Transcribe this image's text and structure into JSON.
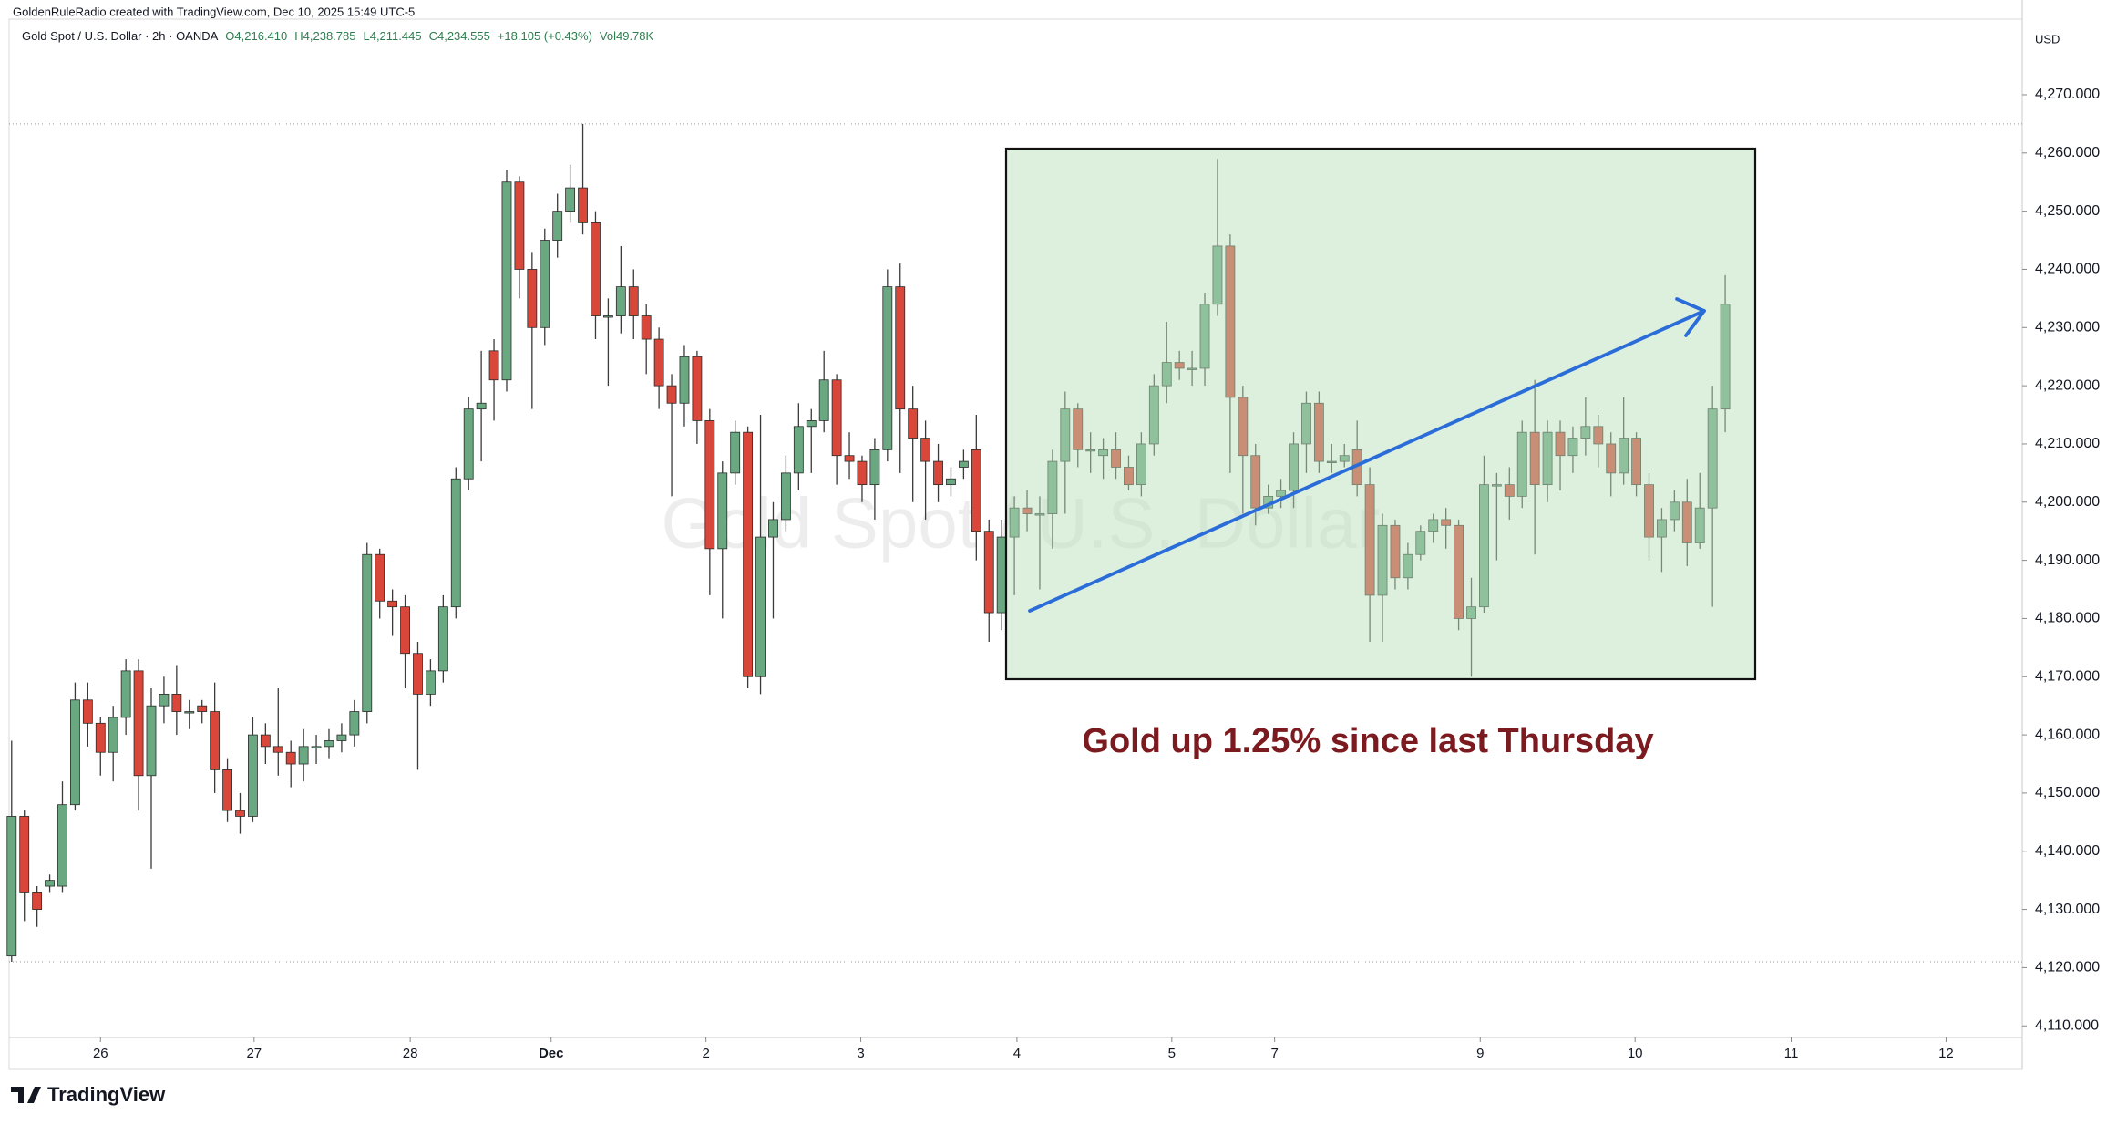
{
  "header": "GoldenRuleRadio created with TradingView.com, Dec 10, 2025 15:49 UTC-5",
  "brand": "TradingView",
  "chart_data": {
    "type": "candlestick",
    "symbol": "Gold Spot / U.S. Dollar · 2h · OANDA",
    "quote": [
      "O4,216.410",
      "H4,238.785",
      "L4,211.445",
      "C4,234.555",
      "+18.105 (+0.43%)"
    ],
    "volume": "Vol49.78K",
    "watermark": "Gold Spot / U.S. Dollar",
    "currency": "USD",
    "annotation": "Gold up 1.25% since last Thursday",
    "up_color": "#6aa882",
    "down_color": "#d9463a",
    "open": [
      4122,
      4146,
      4133,
      4134,
      4134,
      4148,
      4166,
      4162,
      4157,
      4163,
      4171,
      4153,
      4165,
      4167,
      4164,
      4165,
      4164,
      4154,
      4147,
      4146,
      4160,
      4158,
      4157,
      4155,
      4158,
      4158,
      4159,
      4160,
      4164,
      4191,
      4183,
      4182,
      4174,
      4167,
      4171,
      4182,
      4204,
      4216,
      4226,
      4221,
      4255,
      4240,
      4230,
      4245,
      4250,
      4254,
      4248,
      4232,
      4232,
      4237,
      4232,
      4228,
      4220,
      4217,
      4225,
      4214,
      4192,
      4205,
      4212,
      4170,
      4194,
      4197,
      4205,
      4213,
      4214,
      4221,
      4208,
      4207,
      4203,
      4209,
      4237,
      4216,
      4211,
      4207,
      4203,
      4206,
      4209,
      4195,
      4181,
      4194,
      4199,
      4198,
      4198,
      4207,
      4216,
      4209,
      4208,
      4209,
      4206,
      4203,
      4210,
      4220,
      4224,
      4223,
      4223,
      4234,
      4244,
      4218,
      4208,
      4199,
      4201,
      4202,
      4210,
      4217,
      4207,
      4207,
      4209,
      4203,
      4184,
      4196,
      4187,
      4191,
      4195,
      4197,
      4196,
      4180,
      4182,
      4203,
      4203,
      4201,
      4212,
      4203,
      4212,
      4208,
      4211,
      4213,
      4210,
      4205,
      4211,
      4203,
      4194,
      4197,
      4200,
      4193,
      4199,
      4216
    ],
    "high": [
      4159,
      4147,
      4134,
      4136,
      4152,
      4169,
      4169,
      4163,
      4165,
      4173,
      4173,
      4168,
      4170,
      4172,
      4166,
      4166,
      4169,
      4156,
      4150,
      4163,
      4162,
      4168,
      4159,
      4161,
      4160,
      4161,
      4162,
      4166,
      4193,
      4192,
      4185,
      4184,
      4176,
      4173,
      4184,
      4206,
      4218,
      4226,
      4228,
      4257,
      4256,
      4243,
      4247,
      4253,
      4258,
      4265,
      4250,
      4235,
      4244,
      4240,
      4234,
      4230,
      4222,
      4227,
      4226,
      4216,
      4207,
      4214,
      4213,
      4215,
      4200,
      4208,
      4217,
      4216,
      4226,
      4222,
      4212,
      4208,
      4211,
      4240,
      4241,
      4220,
      4214,
      4210,
      4206,
      4209,
      4215,
      4197,
      4197,
      4201,
      4202,
      4201,
      4209,
      4219,
      4217,
      4212,
      4211,
      4212,
      4208,
      4212,
      4222,
      4231,
      4226,
      4226,
      4236,
      4259,
      4246,
      4220,
      4210,
      4203,
      4204,
      4212,
      4219,
      4219,
      4210,
      4210,
      4214,
      4206,
      4198,
      4197,
      4193,
      4196,
      4198,
      4199,
      4197,
      4187,
      4208,
      4205,
      4206,
      4214,
      4221,
      4214,
      4214,
      4213,
      4218,
      4215,
      4212,
      4218,
      4212,
      4205,
      4199,
      4202,
      4204,
      4205,
      4220,
      4239
    ],
    "low": [
      4121,
      4128,
      4127,
      4133,
      4133,
      4147,
      4158,
      4153,
      4152,
      4160,
      4147,
      4137,
      4162,
      4160,
      4161,
      4162,
      4150,
      4145,
      4143,
      4145,
      4155,
      4153,
      4151,
      4152,
      4155,
      4156,
      4157,
      4158,
      4162,
      4180,
      4177,
      4168,
      4154,
      4165,
      4169,
      4180,
      4202,
      4207,
      4214,
      4219,
      4235,
      4216,
      4227,
      4242,
      4248,
      4246,
      4228,
      4220,
      4229,
      4228,
      4222,
      4216,
      4201,
      4213,
      4210,
      4184,
      4180,
      4203,
      4168,
      4167,
      4180,
      4195,
      4202,
      4205,
      4212,
      4203,
      4204,
      4200,
      4197,
      4207,
      4205,
      4200,
      4197,
      4200,
      4201,
      4204,
      4190,
      4176,
      4178,
      4184,
      4195,
      4185,
      4192,
      4198,
      4206,
      4205,
      4204,
      4204,
      4202,
      4201,
      4208,
      4217,
      4221,
      4220,
      4220,
      4232,
      4205,
      4198,
      4196,
      4198,
      4199,
      4199,
      4205,
      4205,
      4205,
      4206,
      4201,
      4176,
      4176,
      4185,
      4185,
      4190,
      4193,
      4192,
      4178,
      4170,
      4181,
      4190,
      4197,
      4199,
      4191,
      4200,
      4202,
      4205,
      4208,
      4206,
      4201,
      4203,
      4201,
      4190,
      4188,
      4195,
      4189,
      4192,
      4182,
      4212
    ],
    "close": [
      4146,
      4133,
      4130,
      4135,
      4148,
      4166,
      4162,
      4157,
      4163,
      4171,
      4153,
      4165,
      4167,
      4164,
      4164,
      4164,
      4154,
      4147,
      4146,
      4160,
      4158,
      4157,
      4155,
      4158,
      4158,
      4159,
      4160,
      4164,
      4191,
      4183,
      4182,
      4174,
      4167,
      4171,
      4182,
      4204,
      4216,
      4217,
      4221,
      4255,
      4240,
      4230,
      4245,
      4250,
      4254,
      4248,
      4232,
      4232,
      4237,
      4232,
      4228,
      4220,
      4217,
      4225,
      4214,
      4192,
      4205,
      4212,
      4170,
      4194,
      4197,
      4205,
      4213,
      4214,
      4221,
      4208,
      4207,
      4203,
      4209,
      4237,
      4216,
      4211,
      4207,
      4203,
      4204,
      4207,
      4195,
      4181,
      4194,
      4199,
      4198,
      4198,
      4207,
      4216,
      4209,
      4209,
      4209,
      4206,
      4203,
      4210,
      4220,
      4224,
      4223,
      4223,
      4234,
      4244,
      4218,
      4208,
      4199,
      4201,
      4202,
      4210,
      4217,
      4207,
      4207,
      4208,
      4203,
      4184,
      4196,
      4187,
      4191,
      4195,
      4197,
      4196,
      4180,
      4182,
      4203,
      4203,
      4201,
      4212,
      4203,
      4212,
      4208,
      4211,
      4213,
      4210,
      4205,
      4211,
      4203,
      4194,
      4197,
      4200,
      4193,
      4199,
      4216,
      4234
    ],
    "xlim": [
      -0.2,
      158.4
    ],
    "xticks": [
      {
        "value": 7.0,
        "label": "26"
      },
      {
        "value": 19.1,
        "label": "27"
      },
      {
        "value": 31.4,
        "label": "28"
      },
      {
        "value": 42.5,
        "label": "Dec"
      },
      {
        "value": 54.7,
        "label": "2"
      },
      {
        "value": 66.9,
        "label": "3"
      },
      {
        "value": 79.2,
        "label": "4"
      },
      {
        "value": 91.4,
        "label": "5"
      },
      {
        "value": 99.5,
        "label": "7"
      },
      {
        "value": 115.7,
        "label": "9"
      },
      {
        "value": 127.9,
        "label": "10"
      },
      {
        "value": 140.2,
        "label": "11"
      },
      {
        "value": 152.4,
        "label": "12"
      }
    ],
    "ylim": [
      4108,
      4283
    ],
    "yticks": [
      {
        "value": 4110,
        "label": "4,110.000"
      },
      {
        "value": 4120,
        "label": "4,120.000"
      },
      {
        "value": 4130,
        "label": "4,130.000"
      },
      {
        "value": 4140,
        "label": "4,140.000"
      },
      {
        "value": 4150,
        "label": "4,150.000"
      },
      {
        "value": 4160,
        "label": "4,160.000"
      },
      {
        "value": 4170,
        "label": "4,170.000"
      },
      {
        "value": 4180,
        "label": "4,180.000"
      },
      {
        "value": 4190,
        "label": "4,190.000"
      },
      {
        "value": 4200,
        "label": "4,200.000"
      },
      {
        "value": 4210,
        "label": "4,210.000"
      },
      {
        "value": 4220,
        "label": "4,220.000"
      },
      {
        "value": 4230,
        "label": "4,230.000"
      },
      {
        "value": 4240,
        "label": "4,240.000"
      },
      {
        "value": 4250,
        "label": "4,250.000"
      },
      {
        "value": 4260,
        "label": "4,260.000"
      },
      {
        "value": 4270,
        "label": "4,270.000"
      }
    ]
  }
}
